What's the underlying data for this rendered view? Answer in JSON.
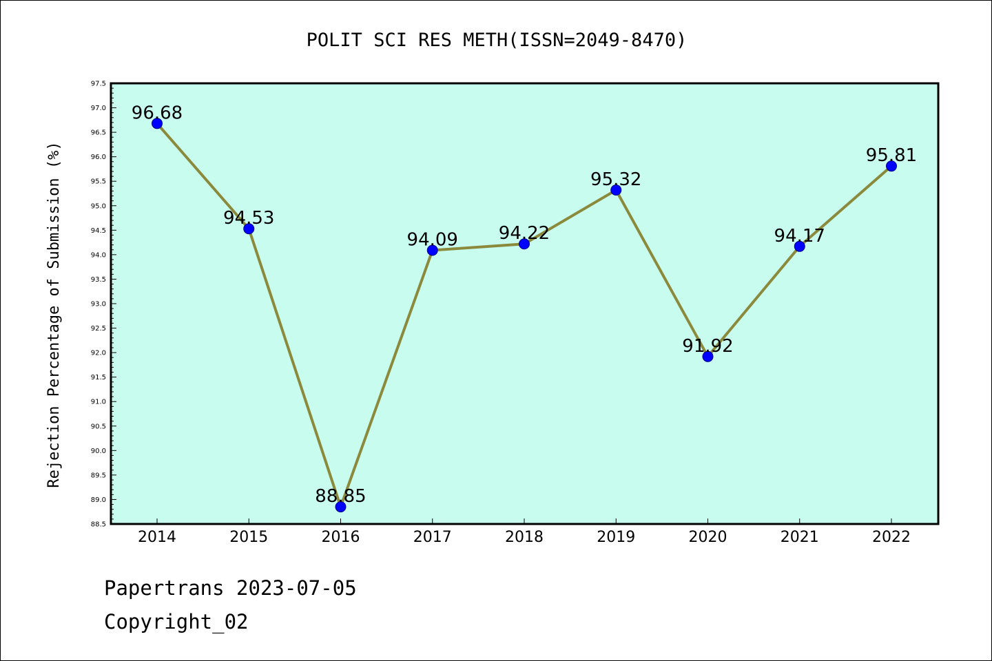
{
  "chart_data": {
    "type": "line",
    "title": "POLIT SCI RES METH(ISSN=2049-8470)",
    "xlabel": "",
    "ylabel": "Rejection Percentage of Submission (%)",
    "categories": [
      "2014",
      "2015",
      "2016",
      "2017",
      "2018",
      "2019",
      "2020",
      "2021",
      "2022"
    ],
    "values": [
      96.68,
      94.53,
      88.85,
      94.09,
      94.22,
      95.32,
      91.92,
      94.17,
      95.81
    ],
    "data_labels": [
      "96.68",
      "94.53",
      "88.85",
      "94.09",
      "94.22",
      "95.32",
      "91.92",
      "94.17",
      "95.81"
    ],
    "ylim": [
      88.5,
      97.5
    ],
    "yticks": [
      "88.5",
      "89.0",
      "89.5",
      "90.0",
      "90.5",
      "91.0",
      "91.5",
      "92.0",
      "92.5",
      "93.0",
      "93.5",
      "94.0",
      "94.5",
      "95.0",
      "95.5",
      "96.0",
      "96.5",
      "97.0",
      "97.5"
    ],
    "grid": false,
    "colors": {
      "plot_background": "#c8fcef",
      "line": "#8b8a3c",
      "marker": "#0000ff"
    }
  },
  "footer": {
    "line1": "Papertrans 2023-07-05",
    "line2": "Copyright_02"
  }
}
